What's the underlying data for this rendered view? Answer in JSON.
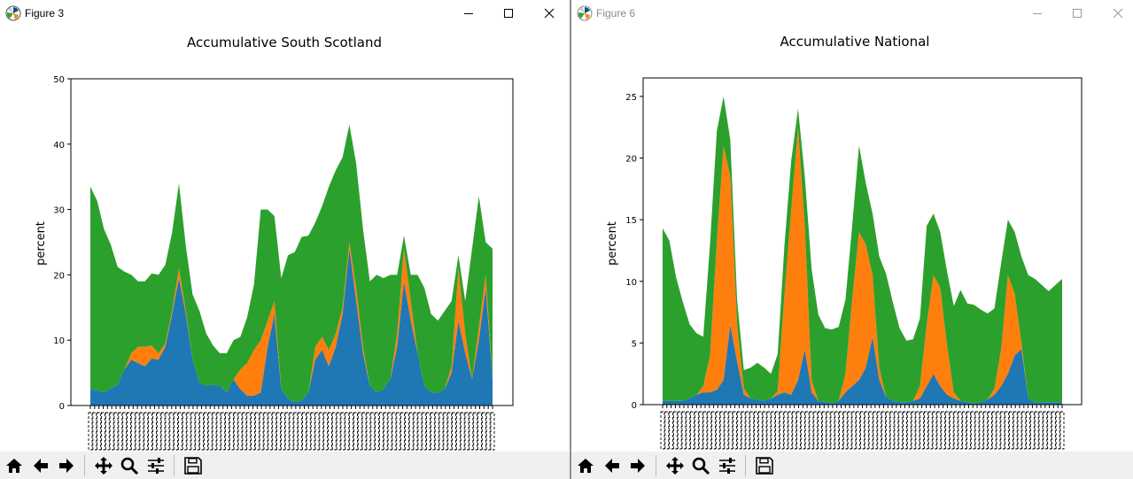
{
  "windows": [
    {
      "title": "Figure 3",
      "active": true,
      "chart_data": {
        "type": "area",
        "title": "Accumulative South Scotland",
        "xlabel": "",
        "ylabel": "percent",
        "ylim": [
          0,
          50
        ],
        "yticks": [
          0,
          10,
          20,
          30,
          40,
          50
        ],
        "x": [
          0,
          1,
          2,
          3,
          4,
          5,
          6,
          7,
          8,
          9,
          10,
          11,
          12,
          13,
          14,
          15,
          16,
          17,
          18,
          19,
          20,
          21,
          22,
          23,
          24,
          25,
          26,
          27,
          28,
          29,
          30,
          31,
          32,
          33,
          34,
          35,
          36,
          37,
          38,
          39,
          40,
          41,
          42,
          43,
          44,
          45,
          46,
          47,
          48,
          49,
          50,
          51,
          52,
          53,
          54,
          55,
          56,
          57,
          58,
          59
        ],
        "stack": true,
        "series": [
          {
            "color": "#1f77b4",
            "values": [
              2.5,
              2.3,
              2.0,
              2.6,
              3.2,
              5.5,
              7.0,
              6.5,
              6.0,
              7.2,
              7.0,
              9.0,
              14.0,
              19.5,
              14.0,
              7.0,
              3.5,
              3.0,
              3.2,
              3.0,
              2.0,
              4.0,
              2.5,
              1.5,
              1.5,
              2.0,
              9.0,
              14.0,
              2.5,
              1.0,
              0.5,
              0.8,
              2.0,
              7.0,
              8.5,
              6.0,
              9.0,
              14.0,
              24.0,
              16.0,
              8.0,
              3.0,
              2.0,
              2.5,
              4.0,
              9.0,
              19.0,
              13.0,
              8.0,
              3.0,
              2.0,
              2.0,
              2.5,
              5.0,
              13.0,
              8.0,
              4.0,
              10.0,
              18.0,
              4.0
            ]
          },
          {
            "color": "#ff7f0e",
            "values": [
              0,
              0,
              0,
              0,
              0,
              0,
              1.0,
              2.5,
              3.0,
              2.0,
              1.0,
              0.5,
              0.5,
              1.5,
              0.5,
              0,
              0,
              0,
              0,
              0,
              0,
              0,
              3.0,
              5.0,
              7.0,
              8.0,
              4.0,
              2.0,
              0,
              0,
              0,
              0,
              0,
              2.0,
              2.0,
              2.5,
              2.0,
              1.0,
              1.0,
              2.0,
              1.0,
              0,
              0,
              0,
              0,
              2.0,
              5.0,
              3.0,
              0,
              0,
              0,
              0,
              0,
              1.0,
              8.0,
              3.0,
              0,
              2.0,
              2.0,
              0
            ]
          },
          {
            "color": "#2ca02c",
            "values": [
              31.0,
              29.0,
              25.0,
              22.0,
              18.0,
              15.0,
              12.0,
              10.0,
              10.0,
              11.0,
              12.0,
              12.0,
              12.0,
              13.0,
              10.0,
              10.0,
              11.0,
              8.0,
              6.0,
              5.0,
              6.0,
              6.0,
              5.0,
              7.0,
              10.0,
              20.0,
              17.0,
              13.0,
              17.0,
              22.0,
              23.0,
              25.0,
              24.0,
              19.0,
              20.0,
              25.0,
              25.0,
              23.0,
              18.0,
              19.0,
              18.0,
              16.0,
              18.0,
              17.0,
              16.0,
              9.0,
              2.0,
              4.0,
              12.0,
              15.0,
              12.0,
              11.0,
              12.0,
              10.0,
              2.0,
              5.0,
              20.0,
              20.0,
              5.0,
              20.0
            ]
          }
        ]
      }
    },
    {
      "title": "Figure 6",
      "active": false,
      "chart_data": {
        "type": "area",
        "title": "Accumulative National",
        "xlabel": "",
        "ylabel": "percent",
        "ylim": [
          0,
          26.5
        ],
        "yticks": [
          0,
          5,
          10,
          15,
          20,
          25
        ],
        "x": [
          0,
          1,
          2,
          3,
          4,
          5,
          6,
          7,
          8,
          9,
          10,
          11,
          12,
          13,
          14,
          15,
          16,
          17,
          18,
          19,
          20,
          21,
          22,
          23,
          24,
          25,
          26,
          27,
          28,
          29,
          30,
          31,
          32,
          33,
          34,
          35,
          36,
          37,
          38,
          39,
          40,
          41,
          42,
          43,
          44,
          45,
          46,
          47,
          48,
          49,
          50,
          51,
          52,
          53,
          54,
          55,
          56,
          57,
          58,
          59
        ],
        "stack": true,
        "series": [
          {
            "color": "#1f77b4",
            "values": [
              0.3,
              0.3,
              0.3,
              0.3,
              0.5,
              0.8,
              1.0,
              1.0,
              1.2,
              2.0,
              6.5,
              3.5,
              0.8,
              0.5,
              0.4,
              0.3,
              0.5,
              0.8,
              1.0,
              0.8,
              2.0,
              4.5,
              1.0,
              0.3,
              0.2,
              0.1,
              0.3,
              1.0,
              1.5,
              2.0,
              3.0,
              5.5,
              2.0,
              0.6,
              0.3,
              0.2,
              0.2,
              0.3,
              0.5,
              1.5,
              2.5,
              1.5,
              0.8,
              0.5,
              0.3,
              0.2,
              0.1,
              0.2,
              0.4,
              0.8,
              1.5,
              2.5,
              4.0,
              4.5,
              0.5,
              0.2,
              0.2,
              0.2,
              0.2,
              0.2
            ]
          },
          {
            "color": "#ff7f0e",
            "values": [
              0,
              0,
              0,
              0,
              0,
              0,
              0.5,
              3.0,
              12.0,
              19.0,
              12.0,
              3.0,
              0.5,
              0,
              0,
              0,
              0,
              0.3,
              8.0,
              15.0,
              20.5,
              10.0,
              1.0,
              0,
              0,
              0,
              0,
              1.5,
              7.0,
              12.0,
              10.0,
              5.0,
              1.0,
              0,
              0,
              0,
              0,
              0,
              1.0,
              5.0,
              8.0,
              8.0,
              4.0,
              0.5,
              0,
              0,
              0,
              0,
              0,
              0.5,
              3.0,
              8.0,
              5.0,
              0.5,
              0,
              0,
              0,
              0,
              0,
              0
            ]
          },
          {
            "color": "#2ca02c",
            "values": [
              14.0,
              13.0,
              10.0,
              8.0,
              6.0,
              5.0,
              4.0,
              9.0,
              9.0,
              4.0,
              3.0,
              2.0,
              1.5,
              2.5,
              3.0,
              2.7,
              2.0,
              3.0,
              4.0,
              4.0,
              1.5,
              4.0,
              9.0,
              7.0,
              6.0,
              6.0,
              6.0,
              6.0,
              6.0,
              7.0,
              5.0,
              5.0,
              9.0,
              10.0,
              8.0,
              6.0,
              5.0,
              5.0,
              5.5,
              8.0,
              5.0,
              4.5,
              6.0,
              7.0,
              9.0,
              8.0,
              8.0,
              7.5,
              7.0,
              6.5,
              7.0,
              4.5,
              5.0,
              7.0,
              10.0,
              10.0,
              9.5,
              9.0,
              9.5,
              10.0
            ]
          }
        ]
      }
    }
  ],
  "window_controls": {
    "minimize_icon": "minimize-icon",
    "maximize_icon": "maximize-icon",
    "close_icon": "close-icon"
  },
  "toolbar_icons": [
    "home-icon",
    "back-arrow-icon",
    "forward-arrow-icon",
    "pan-icon",
    "zoom-icon",
    "configure-subplots-icon",
    "save-icon"
  ],
  "colors": {
    "series_blue": "#1f77b4",
    "series_orange": "#ff7f0e",
    "series_green": "#2ca02c"
  }
}
